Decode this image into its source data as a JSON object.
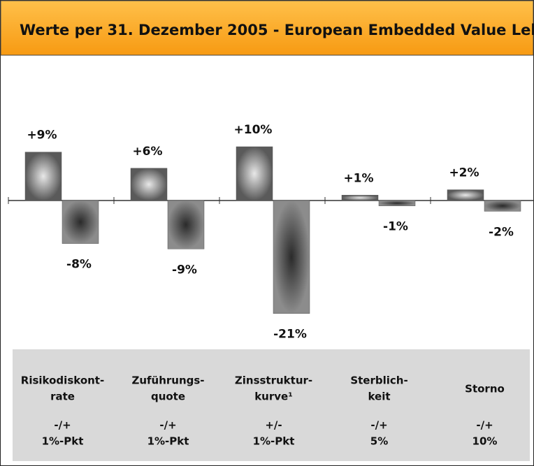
{
  "chart_data": {
    "type": "bar",
    "title": "Werte per 31. Dezember 2005 -  European Embedded Value Leben",
    "categories": [
      [
        "Risikodiskont-",
        "rate"
      ],
      [
        "Zuführungs-",
        "quote"
      ],
      [
        "Zinsstruktur-",
        "kurve¹"
      ],
      [
        "Sterblich-",
        "keit"
      ],
      [
        "Storno"
      ]
    ],
    "variations": [
      [
        "-/+",
        "1%-Pkt"
      ],
      [
        "-/+",
        "1%-Pkt"
      ],
      [
        "+/-",
        "1%-Pkt"
      ],
      [
        "-/+",
        "5%"
      ],
      [
        "-/+",
        "10%"
      ]
    ],
    "series": [
      {
        "color": "#5a5a5a",
        "values": [
          9,
          6,
          10,
          1,
          2
        ],
        "value_labels": [
          "+9%",
          "+6%",
          "+10%",
          "+1%",
          "+2%"
        ]
      },
      {
        "color": "#8c8c8c",
        "values": [
          -8,
          -9,
          -21,
          -1,
          -2
        ],
        "value_labels": [
          "-8%",
          "-9%",
          "-21%",
          "-1%",
          "-2%"
        ]
      }
    ]
  }
}
